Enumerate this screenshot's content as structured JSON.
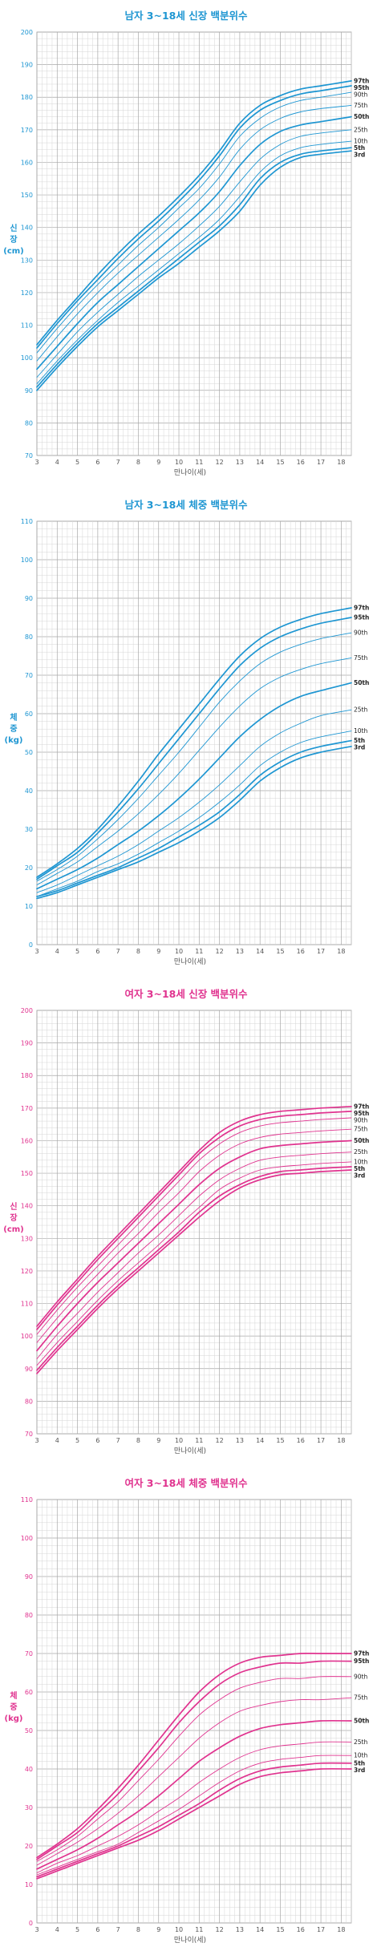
{
  "chart_data": [
    {
      "type": "line",
      "title": "남자 3~18세 신장 백분위수",
      "xlabel": "만나이(세)",
      "ylabel_lines": [
        "신",
        "장",
        "(cm)"
      ],
      "color": "#1e96d2",
      "xlim": [
        3,
        18.5
      ],
      "ylim": [
        70,
        200
      ],
      "ytick_step": 10,
      "x_ticks": [
        "3",
        "4",
        "5",
        "6",
        "7",
        "8",
        "9",
        "10",
        "11",
        "12",
        "13",
        "14",
        "15",
        "16",
        "17",
        "18"
      ],
      "y_ticks": [
        "70",
        "80",
        "90",
        "100",
        "110",
        "120",
        "130",
        "140",
        "150",
        "160",
        "170",
        "180",
        "190",
        "200"
      ],
      "grid": true,
      "x": [
        3,
        4,
        5,
        6,
        7,
        8,
        9,
        10,
        11,
        12,
        13,
        14,
        15,
        16,
        17,
        18.5
      ],
      "series": [
        {
          "name": "97th",
          "values": [
            104,
            111.5,
            118.5,
            125.5,
            132,
            138,
            143.5,
            149.5,
            156,
            163.5,
            172,
            177.5,
            180.5,
            182.5,
            183.5,
            185
          ]
        },
        {
          "name": "95th",
          "values": [
            103,
            110.5,
            117.5,
            124,
            130.5,
            136.5,
            142,
            148,
            154.5,
            162,
            170.5,
            176,
            179,
            181,
            182,
            183.5
          ]
        },
        {
          "name": "90th",
          "values": [
            101.5,
            109,
            116,
            122.5,
            128.5,
            134.5,
            140,
            146,
            152,
            159.5,
            168,
            173.5,
            177,
            179,
            180,
            181.5
          ]
        },
        {
          "name": "75th",
          "values": [
            99,
            106.5,
            113.5,
            120,
            126,
            131.5,
            137,
            142.5,
            148.5,
            155.5,
            164,
            170,
            173.5,
            175.5,
            176.5,
            177.5
          ]
        },
        {
          "name": "50th",
          "values": [
            96.5,
            103.5,
            110.5,
            117,
            122.5,
            128,
            133.5,
            139,
            144.5,
            151,
            159,
            165.5,
            169.5,
            171.5,
            172.5,
            174
          ]
        },
        {
          "name": "25th",
          "values": [
            94,
            101,
            108,
            114,
            119.5,
            125,
            130,
            135,
            140.5,
            146.5,
            154,
            161,
            165.5,
            168,
            169,
            170
          ]
        },
        {
          "name": "10th",
          "values": [
            92,
            99,
            105.5,
            111.5,
            117,
            122,
            127,
            132,
            137,
            142.5,
            149.5,
            157,
            162,
            164.5,
            165.5,
            166.5
          ]
        },
        {
          "name": "5th",
          "values": [
            91,
            98,
            104.5,
            110.5,
            115.5,
            120.5,
            125.5,
            130.5,
            135.5,
            140.5,
            147,
            155,
            160,
            162.5,
            163.5,
            164.5
          ]
        },
        {
          "name": "3rd",
          "values": [
            90,
            97,
            103.5,
            109.5,
            114.5,
            119.5,
            124.5,
            129,
            134,
            139,
            145,
            153,
            158.5,
            161.5,
            162.5,
            163.5
          ]
        }
      ]
    },
    {
      "type": "line",
      "title": "남자 3~18세 체중 백분위수",
      "xlabel": "만나이(세)",
      "ylabel_lines": [
        "체",
        "중",
        "(kg)"
      ],
      "color": "#1e96d2",
      "xlim": [
        3,
        18.5
      ],
      "ylim": [
        0,
        110
      ],
      "ytick_step": 10,
      "x_ticks": [
        "3",
        "4",
        "5",
        "6",
        "7",
        "8",
        "9",
        "10",
        "11",
        "12",
        "13",
        "14",
        "15",
        "16",
        "17",
        "18"
      ],
      "y_ticks": [
        "0",
        "10",
        "20",
        "30",
        "40",
        "50",
        "60",
        "70",
        "80",
        "90",
        "100",
        "110"
      ],
      "grid": true,
      "x": [
        3,
        4,
        5,
        6,
        7,
        8,
        9,
        10,
        11,
        12,
        13,
        14,
        15,
        16,
        17,
        18.5
      ],
      "series": [
        {
          "name": "97th",
          "values": [
            17.5,
            21,
            25,
            30,
            36,
            42.5,
            49.5,
            56,
            62.5,
            69,
            75,
            79.5,
            82.5,
            84.5,
            86,
            87.5
          ]
        },
        {
          "name": "95th",
          "values": [
            17,
            20.5,
            24,
            29,
            34.5,
            40.5,
            47,
            53.5,
            60,
            66.5,
            72.5,
            77,
            80,
            82,
            83.5,
            85
          ]
        },
        {
          "name": "90th",
          "values": [
            16.5,
            19.5,
            23,
            27.5,
            32.5,
            38,
            44,
            50,
            56.5,
            63,
            68.5,
            73,
            76,
            78,
            79.5,
            81
          ]
        },
        {
          "name": "75th",
          "values": [
            15.5,
            18.5,
            21.5,
            25.5,
            29.5,
            34,
            39,
            44.5,
            50.5,
            56.5,
            62,
            66.5,
            69.5,
            71.5,
            73,
            74.5
          ]
        },
        {
          "name": "50th",
          "values": [
            14.5,
            17,
            19.5,
            22.5,
            26,
            29.5,
            33.5,
            38,
            43,
            48.5,
            54,
            58.5,
            62,
            64.5,
            66,
            68
          ]
        },
        {
          "name": "25th",
          "values": [
            13.5,
            15.5,
            18,
            20.5,
            23,
            26,
            29.5,
            33,
            37,
            41.5,
            46.5,
            51.5,
            55,
            57.5,
            59.5,
            61
          ]
        },
        {
          "name": "10th",
          "values": [
            12.5,
            14.5,
            16.5,
            19,
            21,
            23.5,
            26.5,
            29.5,
            33,
            37,
            41.5,
            46.5,
            50,
            52.5,
            54,
            55.5
          ]
        },
        {
          "name": "5th",
          "values": [
            12.5,
            14,
            16,
            18,
            20,
            22.5,
            25,
            28,
            31,
            34.5,
            39,
            44,
            47.5,
            50,
            51.5,
            53
          ]
        },
        {
          "name": "3rd",
          "values": [
            12,
            13.5,
            15.5,
            17.5,
            19.5,
            21.5,
            24,
            26.5,
            29.5,
            33,
            37.5,
            42.5,
            46,
            48.5,
            50,
            51.5
          ]
        }
      ]
    },
    {
      "type": "line",
      "title": "여자 3~18세 신장 백분위수",
      "xlabel": "만나이(세)",
      "ylabel_lines": [
        "신",
        "장",
        "(cm)"
      ],
      "color": "#e0338f",
      "xlim": [
        3,
        18.5
      ],
      "ylim": [
        70,
        200
      ],
      "ytick_step": 10,
      "x_ticks": [
        "3",
        "4",
        "5",
        "6",
        "7",
        "8",
        "9",
        "10",
        "11",
        "12",
        "13",
        "14",
        "15",
        "16",
        "17",
        "18"
      ],
      "y_ticks": [
        "70",
        "80",
        "90",
        "100",
        "110",
        "120",
        "130",
        "140",
        "150",
        "160",
        "170",
        "180",
        "190",
        "200"
      ],
      "grid": true,
      "x": [
        3,
        4,
        5,
        6,
        7,
        8,
        9,
        10,
        11,
        12,
        13,
        14,
        15,
        16,
        17,
        18.5
      ],
      "series": [
        {
          "name": "97th",
          "values": [
            103,
            110.5,
            117.5,
            124.5,
            131,
            137.5,
            144,
            150.5,
            157,
            162.5,
            166,
            168,
            169,
            169.5,
            170,
            170.5
          ]
        },
        {
          "name": "95th",
          "values": [
            102,
            109.5,
            116.5,
            123.5,
            130,
            136.5,
            143,
            149.5,
            156,
            161,
            164.5,
            166.5,
            167.5,
            168,
            168.5,
            169
          ]
        },
        {
          "name": "90th",
          "values": [
            100.5,
            108,
            115,
            121.5,
            128,
            134.5,
            141,
            147.5,
            154,
            159,
            162.5,
            164.5,
            165.5,
            166,
            166.5,
            167
          ]
        },
        {
          "name": "75th",
          "values": [
            98,
            105.5,
            112.5,
            119,
            125.5,
            131.5,
            138,
            144,
            150.5,
            155.5,
            159,
            161,
            162,
            162.5,
            163,
            163.5
          ]
        },
        {
          "name": "50th",
          "values": [
            95.5,
            103,
            110,
            116.5,
            122.5,
            128.5,
            134.5,
            140.5,
            146.5,
            151.5,
            155,
            157.5,
            158.5,
            159,
            159.5,
            160
          ]
        },
        {
          "name": "25th",
          "values": [
            93,
            100.5,
            107,
            113.5,
            119.5,
            125.5,
            131,
            137,
            143,
            148,
            151.5,
            154,
            155,
            155.5,
            156,
            156.5
          ]
        },
        {
          "name": "10th",
          "values": [
            91,
            98,
            104.5,
            111,
            117,
            122.5,
            128,
            134,
            139.5,
            145,
            148.5,
            151,
            152,
            152.5,
            153,
            153.5
          ]
        },
        {
          "name": "5th",
          "values": [
            89.5,
            96.5,
            103,
            109.5,
            115.5,
            121,
            126.5,
            132,
            138,
            143,
            146.5,
            149,
            150.5,
            151,
            151.5,
            152
          ]
        },
        {
          "name": "3rd",
          "values": [
            88.5,
            95.5,
            102,
            108.5,
            114.5,
            120,
            125.5,
            131,
            136.5,
            141.5,
            145.5,
            148,
            149.5,
            150,
            150.5,
            151
          ]
        }
      ]
    },
    {
      "type": "line",
      "title": "여자 3~18세 체중 백분위수",
      "xlabel": "만나이(세)",
      "ylabel_lines": [
        "체",
        "중",
        "(kg)"
      ],
      "color": "#e0338f",
      "xlim": [
        3,
        18.5
      ],
      "ylim": [
        0,
        110
      ],
      "ytick_step": 10,
      "x_ticks": [
        "3",
        "4",
        "5",
        "6",
        "7",
        "8",
        "9",
        "10",
        "11",
        "12",
        "13",
        "14",
        "15",
        "16",
        "17",
        "18"
      ],
      "y_ticks": [
        "0",
        "10",
        "20",
        "30",
        "40",
        "50",
        "60",
        "70",
        "80",
        "90",
        "100",
        "110"
      ],
      "grid": true,
      "x": [
        3,
        4,
        5,
        6,
        7,
        8,
        9,
        10,
        11,
        12,
        13,
        14,
        15,
        16,
        17,
        18.5
      ],
      "series": [
        {
          "name": "97th",
          "values": [
            17,
            20.5,
            24.5,
            29.5,
            35,
            41,
            47.5,
            54,
            60,
            64.5,
            67.5,
            69,
            69.5,
            70,
            70,
            70
          ]
        },
        {
          "name": "95th",
          "values": [
            16.5,
            20,
            23.5,
            28.5,
            33.5,
            39.5,
            45.5,
            52,
            57.5,
            62,
            65,
            66.5,
            67.5,
            67.5,
            68,
            68
          ]
        },
        {
          "name": "90th",
          "values": [
            16,
            19,
            22.5,
            27,
            31.5,
            37,
            42.5,
            48.5,
            54,
            58,
            61,
            62.5,
            63.5,
            63.5,
            64,
            64
          ]
        },
        {
          "name": "75th",
          "values": [
            15,
            18,
            21,
            24.5,
            28.5,
            33,
            38,
            43,
            48,
            52,
            55,
            56.5,
            57.5,
            58,
            58,
            58.5
          ]
        },
        {
          "name": "50th",
          "values": [
            14,
            16.5,
            19,
            22,
            25.5,
            29,
            33,
            37.5,
            42,
            45.5,
            48.5,
            50.5,
            51.5,
            52,
            52.5,
            52.5
          ]
        },
        {
          "name": "25th",
          "values": [
            13,
            15.5,
            17.5,
            20,
            22.5,
            25.5,
            29,
            32.5,
            36.5,
            40,
            43,
            45,
            46,
            46.5,
            47,
            47
          ]
        },
        {
          "name": "10th",
          "values": [
            12.5,
            14.5,
            16.5,
            18.5,
            20.5,
            23.5,
            26.5,
            29.5,
            33,
            36.5,
            39.5,
            41.5,
            42.5,
            43,
            43.5,
            43.5
          ]
        },
        {
          "name": "5th",
          "values": [
            12,
            14,
            16,
            18,
            20,
            22.5,
            25,
            28,
            31,
            34.5,
            37.5,
            39.5,
            40.5,
            41,
            41.5,
            41.5
          ]
        },
        {
          "name": "3rd",
          "values": [
            11.5,
            13.5,
            15.5,
            17.5,
            19.5,
            21.5,
            24,
            27,
            30,
            33,
            36,
            38,
            39,
            39.5,
            40,
            40
          ]
        }
      ]
    }
  ]
}
